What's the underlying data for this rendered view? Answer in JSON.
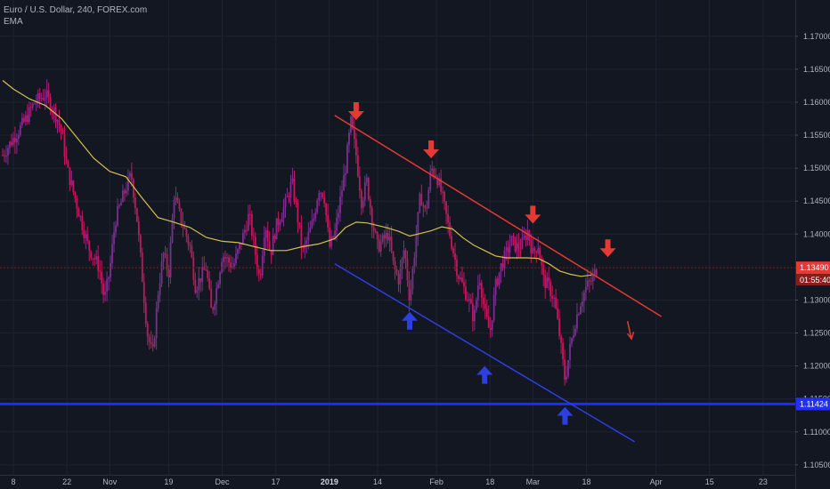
{
  "header": {
    "symbol_line": "Euro / U.S. Dollar, 240, FOREX.com",
    "indicator": "EMA"
  },
  "colors": {
    "background": "#131722",
    "grid": "#1f2330",
    "candle": "#7a2f8f",
    "candle_down": "#c2185b",
    "ema": "#d4c24a",
    "resistance": "#e53935",
    "support": "#2d3fe0",
    "horizontal_level": "#1e2bff",
    "current_price_line": "#7a1f1f",
    "price_badge": "#e53935",
    "level_badge": "#2430f0"
  },
  "chart_data": {
    "type": "candlestick",
    "instrument": "Euro / U.S. Dollar",
    "timeframe": "240",
    "source": "FOREX.com",
    "indicator": "EMA",
    "y_ticks": [
      "1.17000",
      "1.16500",
      "1.16000",
      "1.15500",
      "1.15000",
      "1.14500",
      "1.14000",
      "1.13000",
      "1.12500",
      "1.12000",
      "1.11500",
      "1.11000",
      "1.10500"
    ],
    "ylim": [
      1.1035,
      1.1755
    ],
    "x_ticks": [
      {
        "label": "8",
        "pos": 0
      },
      {
        "label": "22",
        "pos": 10
      },
      {
        "label": "Nov",
        "pos": 18
      },
      {
        "label": "19",
        "pos": 29
      },
      {
        "label": "Dec",
        "pos": 39
      },
      {
        "label": "17",
        "pos": 49
      },
      {
        "label": "2019",
        "pos": 59,
        "bold": true
      },
      {
        "label": "14",
        "pos": 68
      },
      {
        "label": "Feb",
        "pos": 79
      },
      {
        "label": "18",
        "pos": 89
      },
      {
        "label": "Mar",
        "pos": 97
      },
      {
        "label": "18",
        "pos": 107
      },
      {
        "label": "Apr",
        "pos": 120
      },
      {
        "label": "15",
        "pos": 130
      },
      {
        "label": "23",
        "pos": 140
      }
    ],
    "xlim": [
      -2.5,
      146
    ],
    "price_path": [
      [
        -2,
        1.152
      ],
      [
        0,
        1.1545
      ],
      [
        2,
        1.157
      ],
      [
        4,
        1.16
      ],
      [
        6,
        1.1612
      ],
      [
        8,
        1.158
      ],
      [
        9,
        1.1555
      ],
      [
        10,
        1.15
      ],
      [
        12,
        1.144
      ],
      [
        14,
        1.138
      ],
      [
        16,
        1.135
      ],
      [
        17,
        1.13
      ],
      [
        18,
        1.1345
      ],
      [
        19,
        1.142
      ],
      [
        21,
        1.147
      ],
      [
        22,
        1.149
      ],
      [
        23,
        1.143
      ],
      [
        24,
        1.134
      ],
      [
        25,
        1.125
      ],
      [
        26,
        1.1215
      ],
      [
        27,
        1.131
      ],
      [
        28,
        1.137
      ],
      [
        29,
        1.134
      ],
      [
        30,
        1.146
      ],
      [
        31,
        1.143
      ],
      [
        33,
        1.138
      ],
      [
        34,
        1.132
      ],
      [
        36,
        1.135
      ],
      [
        37,
        1.128
      ],
      [
        38,
        1.132
      ],
      [
        39,
        1.137
      ],
      [
        41,
        1.135
      ],
      [
        43,
        1.14
      ],
      [
        44,
        1.143
      ],
      [
        46,
        1.133
      ],
      [
        47,
        1.142
      ],
      [
        48,
        1.137
      ],
      [
        49,
        1.141
      ],
      [
        51,
        1.145
      ],
      [
        52,
        1.148
      ],
      [
        53,
        1.143
      ],
      [
        54,
        1.137
      ],
      [
        56,
        1.142
      ],
      [
        57,
        1.147
      ],
      [
        58,
        1.146
      ],
      [
        59,
        1.138
      ],
      [
        60,
        1.14
      ],
      [
        61,
        1.145
      ],
      [
        62,
        1.15
      ],
      [
        63,
        1.157
      ],
      [
        64,
        1.152
      ],
      [
        65,
        1.145
      ],
      [
        66,
        1.148
      ],
      [
        67,
        1.142
      ],
      [
        68,
        1.138
      ],
      [
        70,
        1.14
      ],
      [
        71,
        1.135
      ],
      [
        72,
        1.133
      ],
      [
        73,
        1.138
      ],
      [
        74,
        1.13
      ],
      [
        75,
        1.138
      ],
      [
        76,
        1.146
      ],
      [
        77,
        1.143
      ],
      [
        78,
        1.15
      ],
      [
        79,
        1.149
      ],
      [
        80,
        1.146
      ],
      [
        81,
        1.142
      ],
      [
        82,
        1.138
      ],
      [
        83,
        1.134
      ],
      [
        84,
        1.132
      ],
      [
        85,
        1.13
      ],
      [
        86,
        1.127
      ],
      [
        87,
        1.134
      ],
      [
        88,
        1.128
      ],
      [
        89,
        1.125
      ],
      [
        90,
        1.132
      ],
      [
        91,
        1.135
      ],
      [
        92,
        1.137
      ],
      [
        93,
        1.139
      ],
      [
        94,
        1.138
      ],
      [
        95,
        1.1385
      ],
      [
        96,
        1.1405
      ],
      [
        97,
        1.137
      ],
      [
        98,
        1.1385
      ],
      [
        99,
        1.133
      ],
      [
        100,
        1.132
      ],
      [
        101,
        1.13
      ],
      [
        102,
        1.1245
      ],
      [
        103,
        1.1178
      ],
      [
        104,
        1.123
      ],
      [
        105,
        1.127
      ],
      [
        106,
        1.13
      ],
      [
        107,
        1.132
      ],
      [
        108,
        1.133
      ],
      [
        109,
        1.1349
      ]
    ],
    "ema_path": [
      [
        -2,
        1.1633
      ],
      [
        0,
        1.162
      ],
      [
        3,
        1.1605
      ],
      [
        6,
        1.1595
      ],
      [
        9,
        1.1575
      ],
      [
        12,
        1.1545
      ],
      [
        15,
        1.1515
      ],
      [
        18,
        1.1495
      ],
      [
        21,
        1.1487
      ],
      [
        24,
        1.1455
      ],
      [
        27,
        1.1425
      ],
      [
        30,
        1.1418
      ],
      [
        33,
        1.141
      ],
      [
        36,
        1.1395
      ],
      [
        39,
        1.1389
      ],
      [
        42,
        1.1387
      ],
      [
        45,
        1.1381
      ],
      [
        48,
        1.1375
      ],
      [
        51,
        1.1375
      ],
      [
        54,
        1.1381
      ],
      [
        57,
        1.1385
      ],
      [
        60,
        1.1393
      ],
      [
        62,
        1.141
      ],
      [
        64,
        1.1418
      ],
      [
        66,
        1.1417
      ],
      [
        68,
        1.1413
      ],
      [
        70,
        1.1409
      ],
      [
        72,
        1.1404
      ],
      [
        74,
        1.1397
      ],
      [
        76,
        1.1401
      ],
      [
        78,
        1.1405
      ],
      [
        80,
        1.1411
      ],
      [
        82,
        1.1408
      ],
      [
        84,
        1.1394
      ],
      [
        86,
        1.1383
      ],
      [
        88,
        1.1375
      ],
      [
        90,
        1.1367
      ],
      [
        92,
        1.1364
      ],
      [
        94,
        1.1364
      ],
      [
        96,
        1.1364
      ],
      [
        98,
        1.1363
      ],
      [
        100,
        1.1355
      ],
      [
        102,
        1.1344
      ],
      [
        104,
        1.1339
      ],
      [
        106,
        1.1336
      ],
      [
        108,
        1.1338
      ]
    ],
    "resistance_line": {
      "x1": 60,
      "y1": 1.158,
      "x2": 121,
      "y2": 1.1275
    },
    "support_line": {
      "x1": 60,
      "y1": 1.1355,
      "x2": 116,
      "y2": 1.1085
    },
    "horizontal_level": 1.11424,
    "current_price": 1.1349,
    "current_price_label": "1.13490",
    "countdown_label": "01:55:40",
    "level_label": "1.11424",
    "down_arrows": [
      {
        "x": 64,
        "price": 1.16
      },
      {
        "x": 78,
        "price": 1.1542
      },
      {
        "x": 97,
        "price": 1.1443
      },
      {
        "x": 111,
        "price": 1.1392
      }
    ],
    "up_arrows": [
      {
        "x": 74,
        "price": 1.1282
      },
      {
        "x": 88,
        "price": 1.12
      },
      {
        "x": 103,
        "price": 1.1138
      }
    ],
    "small_down_arrow": {
      "x": 115,
      "price": 1.1268
    }
  }
}
